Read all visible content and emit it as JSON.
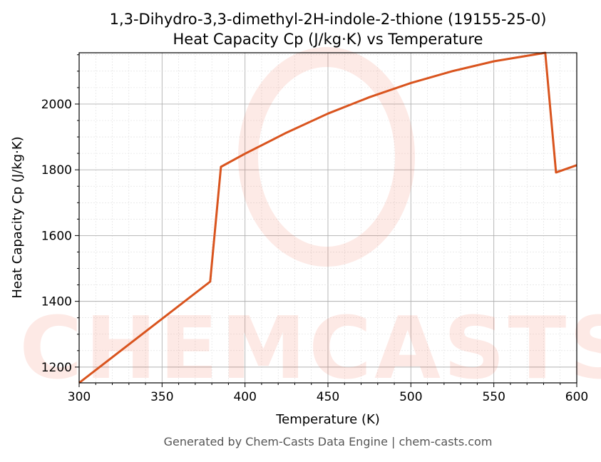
{
  "chart_data": {
    "type": "line",
    "title": "1,3-Dihydro-3,3-dimethyl-2H-indole-2-thione (19155-25-0)",
    "subtitle": "Heat Capacity Cp (J/kg·K) vs Temperature",
    "xlabel": "Temperature (K)",
    "ylabel": "Heat Capacity Cp (J/kg·K)",
    "xlim": [
      300,
      600
    ],
    "ylim": [
      1152,
      2156
    ],
    "xticks": [
      300,
      350,
      400,
      450,
      500,
      550,
      600
    ],
    "yticks": [
      1200,
      1400,
      1600,
      1800,
      2000
    ],
    "grid": true,
    "color": "#d9541e",
    "series": [
      {
        "x": [
          300,
          379,
          385.5,
          400,
          425,
          450,
          475,
          500,
          525,
          550,
          581,
          587.5,
          600
        ],
        "y": [
          1152,
          1460,
          1809,
          1849,
          1913,
          1971,
          2021,
          2064,
          2100,
          2130,
          2156,
          1792,
          1814
        ]
      }
    ]
  },
  "watermark": "CHEMCASTS",
  "footer": "Generated by Chem-Casts Data Engine | chem-casts.com"
}
